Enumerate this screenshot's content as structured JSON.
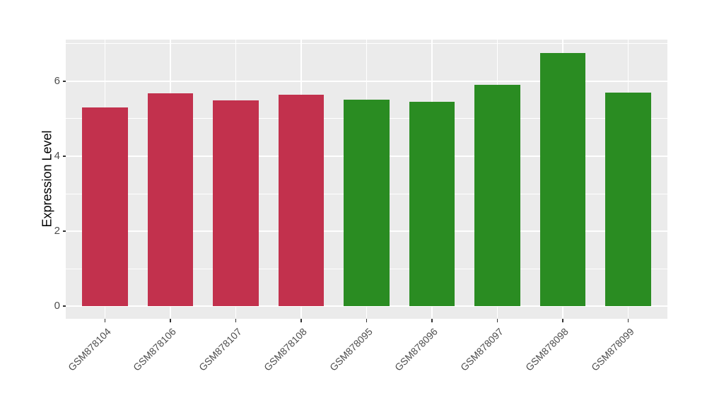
{
  "chart_data": {
    "type": "bar",
    "title": "",
    "xlabel": "",
    "ylabel": "Expression Level",
    "categories": [
      "GSM878104",
      "GSM878106",
      "GSM878107",
      "GSM878108",
      "GSM878095",
      "GSM878096",
      "GSM878097",
      "GSM878098",
      "GSM878099"
    ],
    "values": [
      5.3,
      5.68,
      5.48,
      5.64,
      5.5,
      5.45,
      5.91,
      6.76,
      5.7
    ],
    "bar_colors": [
      "#C2314D",
      "#C2314D",
      "#C2314D",
      "#C2314D",
      "#2A8C22",
      "#2A8C22",
      "#2A8C22",
      "#2A8C22",
      "#2A8C22"
    ],
    "groups": [
      {
        "name": "red-group",
        "color": "#C2314D",
        "categories": [
          "GSM878104",
          "GSM878106",
          "GSM878107",
          "GSM878108"
        ]
      },
      {
        "name": "green-group",
        "color": "#2A8C22",
        "categories": [
          "GSM878095",
          "GSM878096",
          "GSM878097",
          "GSM878098",
          "GSM878099"
        ]
      }
    ],
    "ylim": [
      -0.34,
      7.11
    ],
    "yticks": [
      0,
      2,
      4,
      6
    ],
    "ytick_labels": [
      "0",
      "2",
      "4",
      "6"
    ],
    "minor_yticks": [
      1,
      3,
      5,
      7
    ],
    "grid": true,
    "legend": "none",
    "bar_width_ratio": 0.7,
    "panel_background": "#EBEBEB",
    "grid_color": "#FFFFFF",
    "tick_color": "#333333",
    "tick_label_color": "#4D4D4D",
    "axis_title_color": "#000000"
  }
}
